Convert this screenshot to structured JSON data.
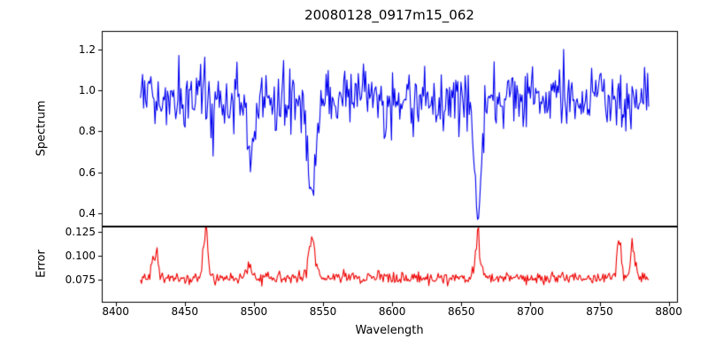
{
  "title": "20080128_0917m15_062",
  "axes": {
    "xlabel": "Wavelength",
    "top_ylabel": "Spectrum",
    "bottom_ylabel": "Error"
  },
  "chart_data": [
    {
      "type": "line",
      "name": "spectrum",
      "title": "20080128_0917m15_062",
      "xlabel": "Wavelength",
      "ylabel": "Spectrum",
      "color": "#0000ee",
      "xlim": [
        8390,
        8806
      ],
      "ylim": [
        0.34,
        1.29
      ],
      "xticks": [
        8400,
        8450,
        8500,
        8550,
        8600,
        8650,
        8700,
        8750,
        8800
      ],
      "xtick_labels": [
        "8400",
        "8450",
        "8500",
        "8550",
        "8600",
        "8650",
        "8700",
        "8750",
        "8800"
      ],
      "yticks": [
        0.4,
        0.6,
        0.8,
        1.0,
        1.2
      ],
      "ytick_labels": [
        "0.4",
        "0.6",
        "0.8",
        "1.0",
        "1.2"
      ],
      "x_start": 8418,
      "x_end": 8786,
      "x_step": 0.75,
      "continuum": 0.96,
      "noise_sigma": 0.08,
      "seed": 20080128,
      "grid": false,
      "legend": "none",
      "absorption_lines": [
        {
          "center": 8498,
          "depth": 0.33,
          "width": 2.2,
          "min_value": 0.61
        },
        {
          "center": 8542,
          "depth": 0.48,
          "width": 2.8,
          "min_value": 0.47
        },
        {
          "center": 8662,
          "depth": 0.58,
          "width": 2.4,
          "min_value": 0.37
        }
      ]
    },
    {
      "type": "line",
      "name": "error",
      "ylabel": "Error",
      "color": "#ee0000",
      "xlim": [
        8390,
        8806
      ],
      "ylim": [
        0.052,
        0.131
      ],
      "yticks": [
        0.075,
        0.1,
        0.125
      ],
      "ytick_labels": [
        "0.075",
        "0.100",
        "0.125"
      ],
      "x_start": 8418,
      "x_end": 8786,
      "x_step": 0.75,
      "baseline": 0.077,
      "noise_sigma": 0.0032,
      "seed": 917,
      "grid": false,
      "legend": "none",
      "peaks": [
        {
          "center": 8429,
          "amp": 0.026,
          "width": 2.0,
          "max_value": 0.105
        },
        {
          "center": 8465,
          "amp": 0.04,
          "width": 1.8,
          "max_value": 0.12
        },
        {
          "center": 8497,
          "amp": 0.015,
          "width": 2.0,
          "max_value": 0.095
        },
        {
          "center": 8542,
          "amp": 0.047,
          "width": 2.2,
          "max_value": 0.128
        },
        {
          "center": 8662,
          "amp": 0.035,
          "width": 2.2,
          "max_value": 0.115
        },
        {
          "center": 8764,
          "amp": 0.032,
          "width": 1.8,
          "max_value": 0.115
        },
        {
          "center": 8774,
          "amp": 0.028,
          "width": 1.6,
          "max_value": 0.11
        }
      ]
    }
  ]
}
